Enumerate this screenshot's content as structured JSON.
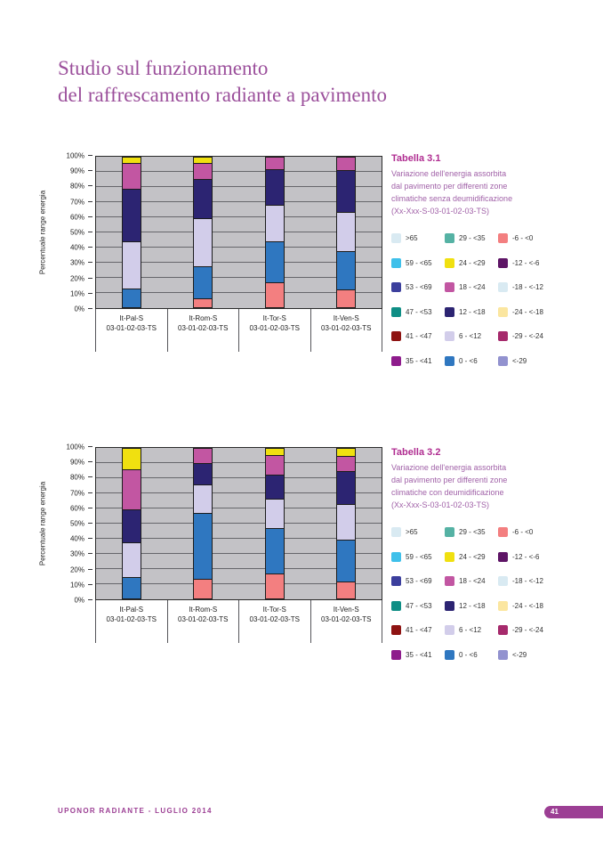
{
  "page": {
    "title_line1": "Studio sul funzionamento",
    "title_line2": "del raffrescamento radiante a pavimento",
    "footer_left": "UPONOR RADIANTE - LUGLIO 2014",
    "page_number": "41",
    "accent_color": "#9b4f9b",
    "footer_color": "#9c3f94"
  },
  "tables": [
    {
      "title": "Tabella 3.1",
      "description_lines": [
        "Variazione dell'energia assorbita",
        "dal pavimento per differenti zone",
        "climatiche senza deumidificazione",
        "(Xx-Xxx-S-03-01-02-03-TS)"
      ]
    },
    {
      "title": "Tabella 3.2",
      "description_lines": [
        "Variazione dell'energia assorbita",
        "dal pavimento per differenti zone",
        "climatiche con deumidificazione",
        "(Xx-Xxx-S-03-01-02-03-TS)"
      ]
    }
  ],
  "legend_items": [
    {
      "label": ">65",
      "color": "#d9eaf2"
    },
    {
      "label": "59 - <65",
      "color": "#3fc0ea"
    },
    {
      "label": "53 - <69",
      "color": "#3c3f9d"
    },
    {
      "label": "47 - <53",
      "color": "#0f8e85"
    },
    {
      "label": "41 - <47",
      "color": "#8e1312"
    },
    {
      "label": "35 - <41",
      "color": "#8e1c8c"
    },
    {
      "label": "29 - <35",
      "color": "#55b2a4"
    },
    {
      "label": "24 - <29",
      "color": "#f0e010"
    },
    {
      "label": "18 - <24",
      "color": "#c256a2"
    },
    {
      "label": "12 - <18",
      "color": "#2c2472"
    },
    {
      "label": "6 - <12",
      "color": "#d2cdea"
    },
    {
      "label": "0 - <6",
      "color": "#2f77c0"
    },
    {
      "label": "-6 - <0",
      "color": "#f37f80"
    },
    {
      "label": "-12 - <-6",
      "color": "#5e1566"
    },
    {
      "label": "-18 - <-12",
      "color": "#d9eaf2"
    },
    {
      "label": "-24 - <-18",
      "color": "#fbe6a0"
    },
    {
      "label": "-29 - <-24",
      "color": "#a62a6c"
    },
    {
      "label": "<-29",
      "color": "#9292cf"
    }
  ],
  "chart_data": [
    {
      "type": "bar",
      "stacked": true,
      "title": "Variazione dell'energia assorbita dal pavimento per differenti zone climatiche senza deumidificazione",
      "ylabel": "Percentuale range energia",
      "ylim": [
        0,
        100
      ],
      "yticks": [
        "0%",
        "10%",
        "20%",
        "30%",
        "40%",
        "50%",
        "60%",
        "70%",
        "80%",
        "90%",
        "100%"
      ],
      "plot_background": "#c3c2c6",
      "grid": true,
      "categories": [
        {
          "line1": "It-Pal-S",
          "line2": "03-01-02-03-TS"
        },
        {
          "line1": "It-Rom-S",
          "line2": "03-01-02-03-TS"
        },
        {
          "line1": "It-Tor-S",
          "line2": "03-01-02-03-TS"
        },
        {
          "line1": "It-Ven-S",
          "line2": "03-01-02-03-TS"
        }
      ],
      "series": [
        {
          "name": "-6 - <0",
          "color": "#f37f80",
          "values": [
            0,
            6,
            16.5,
            12
          ]
        },
        {
          "name": "0 - <6",
          "color": "#2f77c0",
          "values": [
            12.5,
            21,
            27.5,
            25.5
          ]
        },
        {
          "name": "6 - <12",
          "color": "#d2cdea",
          "values": [
            31.5,
            32,
            24,
            26
          ]
        },
        {
          "name": "12 - <18",
          "color": "#2c2472",
          "values": [
            35,
            26,
            24,
            27.5
          ]
        },
        {
          "name": "18 - <24",
          "color": "#c256a2",
          "values": [
            17,
            11,
            8,
            9
          ]
        },
        {
          "name": "24 - <29",
          "color": "#f0e010",
          "values": [
            4,
            4,
            0,
            0
          ]
        }
      ]
    },
    {
      "type": "bar",
      "stacked": true,
      "title": "Variazione dell'energia assorbita dal pavimento per differenti zone climatiche con deumidificazione",
      "ylabel": "Percentuale range energia",
      "ylim": [
        0,
        100
      ],
      "yticks": [
        "0%",
        "10%",
        "20%",
        "30%",
        "40%",
        "50%",
        "60%",
        "70%",
        "80%",
        "90%",
        "100%"
      ],
      "plot_background": "#c3c2c6",
      "grid": true,
      "categories": [
        {
          "line1": "It-Pal-S",
          "line2": "03-01-02-03-TS"
        },
        {
          "line1": "It-Rom-S",
          "line2": "03-01-02-03-TS"
        },
        {
          "line1": "It-Tor-S",
          "line2": "03-01-02-03-TS"
        },
        {
          "line1": "It-Ven-S",
          "line2": "03-01-02-03-TS"
        }
      ],
      "series": [
        {
          "name": "-6 - <0",
          "color": "#f37f80",
          "values": [
            0,
            13,
            16.5,
            11.5
          ]
        },
        {
          "name": "0 - <6",
          "color": "#2f77c0",
          "values": [
            14,
            44,
            30,
            27.5
          ]
        },
        {
          "name": "6 - <12",
          "color": "#d2cdea",
          "values": [
            23,
            19,
            19.5,
            23.5
          ]
        },
        {
          "name": "12 - <18",
          "color": "#2c2472",
          "values": [
            22,
            14,
            16,
            22
          ]
        },
        {
          "name": "18 - <24",
          "color": "#c256a2",
          "values": [
            27,
            10,
            13.5,
            10
          ]
        },
        {
          "name": "24 - <29",
          "color": "#f0e010",
          "values": [
            14,
            0,
            4.5,
            5.5
          ]
        }
      ]
    }
  ]
}
